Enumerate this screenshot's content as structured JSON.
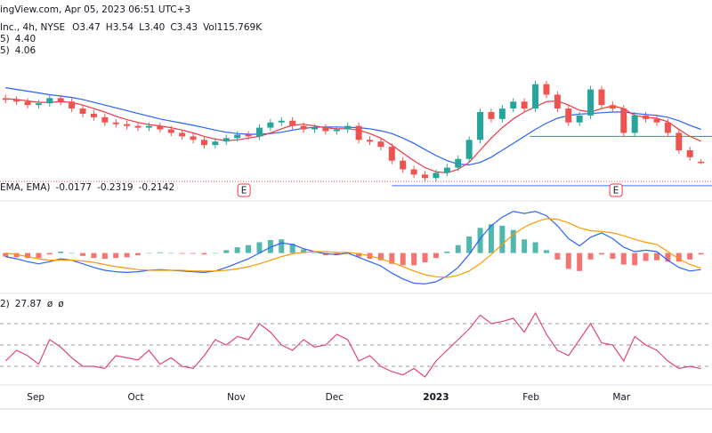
{
  "header": {
    "source": "ingView.com, Apr 05, 2023 06:51 UTC+3",
    "symbol": "Inc., 4h, NYSE",
    "ohlc": [
      {
        "label": "O",
        "value": "3.47"
      },
      {
        "label": "H",
        "value": "3.54"
      },
      {
        "label": "L",
        "value": "3.40"
      },
      {
        "label": "C",
        "value": "3.43"
      },
      {
        "label": "Vol",
        "value": "115.769K"
      }
    ]
  },
  "chart_data": [
    {
      "type": "candlestick",
      "up_color": "#26a69a",
      "down_color": "#ef5350",
      "ylim": [
        2.7,
        7.1
      ],
      "xlim": [
        -0.5,
        64
      ],
      "open": [
        5.3,
        5.25,
        5.2,
        5.1,
        5.15,
        5.3,
        5.2,
        5.0,
        4.85,
        4.75,
        4.6,
        4.55,
        4.5,
        4.45,
        4.5,
        4.4,
        4.3,
        4.2,
        4.1,
        3.95,
        4.05,
        4.15,
        4.25,
        4.2,
        4.45,
        4.6,
        4.65,
        4.5,
        4.4,
        4.45,
        4.35,
        4.4,
        4.5,
        4.1,
        4.05,
        3.9,
        3.5,
        3.25,
        3.1,
        3.0,
        3.15,
        3.3,
        3.55,
        4.1,
        4.9,
        4.7,
        5.0,
        5.2,
        5.0,
        5.7,
        5.4,
        5.0,
        4.6,
        4.8,
        5.55,
        5.1,
        5.0,
        4.3,
        4.8,
        4.7,
        4.6,
        4.3,
        3.8,
        3.47
      ],
      "high": [
        5.4,
        5.35,
        5.3,
        5.25,
        5.4,
        5.4,
        5.3,
        5.1,
        4.95,
        4.85,
        4.7,
        4.65,
        4.6,
        4.6,
        4.6,
        4.5,
        4.4,
        4.3,
        4.2,
        4.15,
        4.25,
        4.35,
        4.35,
        4.55,
        4.7,
        4.75,
        4.75,
        4.6,
        4.55,
        4.55,
        4.5,
        4.6,
        4.6,
        4.2,
        4.15,
        4.0,
        3.6,
        3.35,
        3.2,
        3.25,
        3.4,
        3.65,
        4.2,
        5.0,
        5.0,
        5.1,
        5.3,
        5.3,
        5.8,
        5.8,
        5.5,
        5.1,
        4.9,
        5.65,
        5.65,
        5.2,
        5.1,
        4.9,
        4.9,
        4.8,
        4.7,
        4.4,
        3.9,
        3.54
      ],
      "low": [
        5.15,
        5.1,
        5.0,
        5.0,
        5.05,
        5.1,
        4.9,
        4.75,
        4.65,
        4.5,
        4.45,
        4.4,
        4.35,
        4.35,
        4.3,
        4.2,
        4.1,
        4.0,
        3.85,
        3.85,
        3.95,
        4.05,
        4.1,
        4.1,
        4.35,
        4.5,
        4.4,
        4.3,
        4.3,
        4.25,
        4.25,
        4.3,
        4.0,
        3.95,
        3.8,
        3.4,
        3.15,
        3.0,
        2.9,
        2.9,
        3.05,
        3.2,
        3.45,
        4.0,
        4.6,
        4.6,
        4.9,
        4.9,
        4.9,
        5.3,
        4.9,
        4.5,
        4.5,
        4.7,
        5.0,
        4.9,
        4.2,
        4.2,
        4.6,
        4.5,
        4.2,
        3.7,
        3.5,
        3.4
      ],
      "close": [
        5.25,
        5.2,
        5.1,
        5.15,
        5.3,
        5.2,
        5.0,
        4.85,
        4.75,
        4.6,
        4.55,
        4.5,
        4.45,
        4.5,
        4.4,
        4.3,
        4.2,
        4.1,
        3.95,
        4.05,
        4.15,
        4.25,
        4.2,
        4.45,
        4.6,
        4.65,
        4.5,
        4.4,
        4.45,
        4.35,
        4.4,
        4.5,
        4.1,
        4.05,
        3.9,
        3.5,
        3.25,
        3.1,
        3.0,
        3.15,
        3.3,
        3.55,
        4.1,
        4.9,
        4.7,
        5.0,
        5.2,
        5.0,
        5.7,
        5.4,
        5.0,
        4.6,
        4.8,
        5.55,
        5.1,
        5.0,
        4.3,
        4.8,
        4.7,
        4.6,
        4.3,
        3.8,
        3.6,
        3.43
      ],
      "series": [
        {
          "name": "5)",
          "color": "#2962ff",
          "last": "4.40",
          "values": [
            5.6,
            5.55,
            5.5,
            5.45,
            5.4,
            5.36,
            5.32,
            5.26,
            5.18,
            5.1,
            5.02,
            4.94,
            4.86,
            4.78,
            4.7,
            4.64,
            4.58,
            4.52,
            4.45,
            4.38,
            4.32,
            4.28,
            4.26,
            4.26,
            4.28,
            4.32,
            4.38,
            4.43,
            4.46,
            4.47,
            4.47,
            4.46,
            4.45,
            4.42,
            4.36,
            4.28,
            4.15,
            4.0,
            3.82,
            3.65,
            3.5,
            3.4,
            3.38,
            3.45,
            3.6,
            3.8,
            4.0,
            4.2,
            4.4,
            4.58,
            4.72,
            4.8,
            4.84,
            4.86,
            4.88,
            4.9,
            4.9,
            4.86,
            4.83,
            4.8,
            4.75,
            4.65,
            4.52,
            4.4
          ]
        },
        {
          "name": "5)",
          "color": "#f23645",
          "last": "4.06",
          "values": [
            5.28,
            5.26,
            5.22,
            5.18,
            5.18,
            5.2,
            5.18,
            5.1,
            5.0,
            4.9,
            4.78,
            4.68,
            4.6,
            4.54,
            4.5,
            4.45,
            4.38,
            4.3,
            4.2,
            4.12,
            4.08,
            4.1,
            4.15,
            4.2,
            4.3,
            4.42,
            4.52,
            4.55,
            4.5,
            4.45,
            4.42,
            4.42,
            4.38,
            4.28,
            4.15,
            3.95,
            3.72,
            3.5,
            3.3,
            3.18,
            3.15,
            3.25,
            3.45,
            3.8,
            4.15,
            4.45,
            4.7,
            4.9,
            5.05,
            5.2,
            5.22,
            5.1,
            4.95,
            4.9,
            5.0,
            5.08,
            5.0,
            4.8,
            4.75,
            4.72,
            4.62,
            4.4,
            4.2,
            4.06
          ]
        }
      ],
      "levels": [
        {
          "price": 4.2,
          "from": 47.5,
          "color": "#2962ff"
        },
        {
          "price": 2.78,
          "from": 35,
          "color": "#2962ff"
        },
        {
          "price": 2.9,
          "from": -0.5,
          "color": "#f23645"
        }
      ],
      "events": [
        {
          "label": "E",
          "x": 21.6
        },
        {
          "label": "E",
          "x": 55.3
        }
      ]
    },
    {
      "type": "macd",
      "title": "EMA, EMA)",
      "ylim": [
        -0.5,
        0.7
      ],
      "xlim": [
        -0.5,
        64
      ],
      "histogram": {
        "color_up": "#26a69a",
        "color_down": "#ef5350",
        "last": -0.0177,
        "values": [
          -0.05,
          -0.06,
          -0.07,
          -0.07,
          -0.02,
          0.02,
          0.0,
          -0.04,
          -0.07,
          -0.08,
          -0.07,
          -0.06,
          -0.03,
          0.0,
          0.01,
          0.0,
          -0.01,
          -0.01,
          -0.02,
          0.0,
          0.04,
          0.08,
          0.11,
          0.15,
          0.18,
          0.19,
          0.13,
          0.05,
          0.0,
          -0.03,
          -0.03,
          -0.01,
          -0.05,
          -0.08,
          -0.1,
          -0.15,
          -0.17,
          -0.17,
          -0.13,
          -0.07,
          0.02,
          0.11,
          0.23,
          0.35,
          0.4,
          0.38,
          0.32,
          0.19,
          0.15,
          0.04,
          -0.09,
          -0.22,
          -0.25,
          -0.09,
          -0.02,
          -0.08,
          -0.16,
          -0.17,
          -0.11,
          -0.1,
          -0.12,
          -0.12,
          -0.09,
          -0.02
        ]
      },
      "series": [
        {
          "color": "#2962ff",
          "last": -0.2319,
          "values": [
            -0.05,
            -0.08,
            -0.12,
            -0.15,
            -0.12,
            -0.08,
            -0.1,
            -0.15,
            -0.2,
            -0.24,
            -0.26,
            -0.27,
            -0.26,
            -0.24,
            -0.23,
            -0.24,
            -0.25,
            -0.26,
            -0.27,
            -0.25,
            -0.2,
            -0.14,
            -0.08,
            0.0,
            0.08,
            0.14,
            0.12,
            0.06,
            0.02,
            -0.01,
            -0.02,
            0.0,
            -0.06,
            -0.12,
            -0.18,
            -0.28,
            -0.36,
            -0.42,
            -0.43,
            -0.4,
            -0.32,
            -0.2,
            -0.02,
            0.2,
            0.38,
            0.5,
            0.58,
            0.55,
            0.58,
            0.52,
            0.38,
            0.2,
            0.1,
            0.22,
            0.28,
            0.2,
            0.08,
            0.02,
            0.04,
            0.02,
            -0.1,
            -0.2,
            -0.25,
            -0.23
          ]
        },
        {
          "color": "#ff9800",
          "last": -0.2142,
          "values": [
            0.0,
            -0.02,
            -0.05,
            -0.08,
            -0.1,
            -0.1,
            -0.1,
            -0.11,
            -0.13,
            -0.16,
            -0.19,
            -0.21,
            -0.23,
            -0.24,
            -0.24,
            -0.24,
            -0.24,
            -0.25,
            -0.25,
            -0.25,
            -0.24,
            -0.22,
            -0.19,
            -0.15,
            -0.1,
            -0.05,
            -0.01,
            0.01,
            0.02,
            0.02,
            0.01,
            0.01,
            -0.01,
            -0.04,
            -0.08,
            -0.13,
            -0.19,
            -0.25,
            -0.3,
            -0.33,
            -0.34,
            -0.31,
            -0.25,
            -0.15,
            -0.02,
            0.12,
            0.26,
            0.36,
            0.43,
            0.48,
            0.47,
            0.42,
            0.35,
            0.31,
            0.3,
            0.28,
            0.24,
            0.19,
            0.15,
            0.12,
            0.02,
            -0.08,
            -0.16,
            -0.21
          ]
        }
      ]
    },
    {
      "type": "line",
      "title": "2)",
      "ylim": [
        15,
        90
      ],
      "yticks": [
        70,
        50,
        30
      ],
      "xlim": [
        -0.5,
        64
      ],
      "extra": [
        "ø",
        "ø"
      ],
      "series": [
        {
          "color": "#e0457b",
          "last": 27.87,
          "values": [
            35,
            45,
            40,
            32,
            55,
            48,
            38,
            30,
            30,
            28,
            40,
            38,
            36,
            45,
            32,
            38,
            30,
            28,
            40,
            55,
            50,
            58,
            55,
            70,
            62,
            50,
            45,
            55,
            48,
            50,
            60,
            55,
            35,
            40,
            30,
            25,
            22,
            28,
            20,
            35,
            45,
            55,
            65,
            78,
            70,
            72,
            75,
            62,
            80,
            60,
            45,
            40,
            55,
            70,
            52,
            50,
            35,
            58,
            50,
            45,
            35,
            28,
            30,
            27.87
          ]
        }
      ],
      "xticks": [
        {
          "value": 2.74,
          "label": "Sep"
        },
        {
          "value": 11.8,
          "label": "Oct"
        },
        {
          "value": 20.9,
          "label": "Nov"
        },
        {
          "value": 29.8,
          "label": "Dec"
        },
        {
          "value": 39.0,
          "label": "2023"
        },
        {
          "value": 47.6,
          "label": "Feb"
        },
        {
          "value": 55.8,
          "label": "Mar"
        }
      ]
    }
  ]
}
